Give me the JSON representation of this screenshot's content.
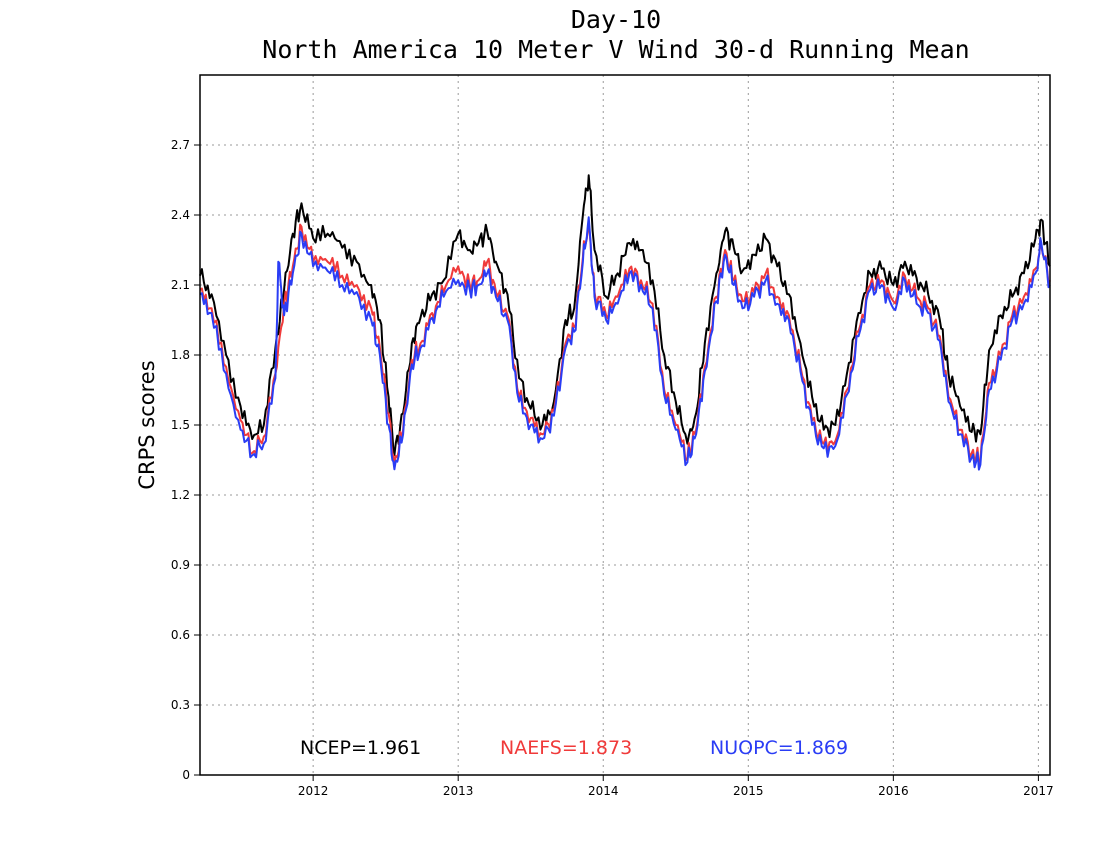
{
  "chart_data": {
    "type": "line",
    "title": "Day-10",
    "subtitle": "North America 10 Meter V Wind 30-d Running Mean",
    "ylabel": "CRPS scores",
    "xlabel": "",
    "xlim": [
      2011.22,
      2017.08
    ],
    "ylim": [
      0,
      3.0
    ],
    "x_ticks": [
      "2012",
      "2013",
      "2014",
      "2015",
      "2016",
      "2017"
    ],
    "y_ticks": [
      "0",
      "0.3",
      "0.6",
      "0.9",
      "1.2",
      "1.5",
      "1.8",
      "2.1",
      "2.4",
      "2.7"
    ],
    "grid": true,
    "legend_placement": "bottom",
    "colors": {
      "NCEP": "#000000",
      "NAEFS": "#f03a3a",
      "NUOPC": "#2a3df5"
    },
    "legend": [
      {
        "name": "NCEP",
        "text": "NCEP=1.961",
        "color": "#000000"
      },
      {
        "name": "NAEFS",
        "text": "NAEFS=1.873",
        "color": "#f03a3a"
      },
      {
        "name": "NUOPC",
        "text": "NUOPC=1.869",
        "color": "#2a3df5"
      }
    ],
    "series": [
      {
        "name": "NCEP",
        "points": [
          [
            2011.22,
            2.14
          ],
          [
            2011.3,
            2.06
          ],
          [
            2011.4,
            1.8
          ],
          [
            2011.5,
            1.58
          ],
          [
            2011.58,
            1.44
          ],
          [
            2011.66,
            1.5
          ],
          [
            2011.74,
            1.83
          ],
          [
            2011.8,
            2.08
          ],
          [
            2011.86,
            2.32
          ],
          [
            2011.92,
            2.45
          ],
          [
            2012.0,
            2.3
          ],
          [
            2012.1,
            2.32
          ],
          [
            2012.2,
            2.26
          ],
          [
            2012.3,
            2.2
          ],
          [
            2012.4,
            2.1
          ],
          [
            2012.46,
            1.95
          ],
          [
            2012.52,
            1.62
          ],
          [
            2012.56,
            1.37
          ],
          [
            2012.62,
            1.55
          ],
          [
            2012.68,
            1.85
          ],
          [
            2012.74,
            1.96
          ],
          [
            2012.82,
            2.06
          ],
          [
            2012.9,
            2.12
          ],
          [
            2013.0,
            2.32
          ],
          [
            2013.08,
            2.25
          ],
          [
            2013.14,
            2.28
          ],
          [
            2013.2,
            2.33
          ],
          [
            2013.26,
            2.2
          ],
          [
            2013.34,
            2.06
          ],
          [
            2013.42,
            1.7
          ],
          [
            2013.5,
            1.57
          ],
          [
            2013.58,
            1.5
          ],
          [
            2013.66,
            1.6
          ],
          [
            2013.74,
            1.95
          ],
          [
            2013.8,
            2.0
          ],
          [
            2013.86,
            2.4
          ],
          [
            2013.9,
            2.57
          ],
          [
            2013.94,
            2.25
          ],
          [
            2014.02,
            2.05
          ],
          [
            2014.1,
            2.15
          ],
          [
            2014.18,
            2.28
          ],
          [
            2014.26,
            2.25
          ],
          [
            2014.34,
            2.12
          ],
          [
            2014.42,
            1.8
          ],
          [
            2014.5,
            1.6
          ],
          [
            2014.58,
            1.42
          ],
          [
            2014.64,
            1.55
          ],
          [
            2014.7,
            1.85
          ],
          [
            2014.78,
            2.15
          ],
          [
            2014.84,
            2.33
          ],
          [
            2014.9,
            2.26
          ],
          [
            2014.96,
            2.16
          ],
          [
            2015.04,
            2.23
          ],
          [
            2015.12,
            2.3
          ],
          [
            2015.2,
            2.18
          ],
          [
            2015.28,
            2.06
          ],
          [
            2015.36,
            1.85
          ],
          [
            2015.44,
            1.62
          ],
          [
            2015.52,
            1.48
          ],
          [
            2015.6,
            1.5
          ],
          [
            2015.68,
            1.72
          ],
          [
            2015.76,
            1.98
          ],
          [
            2015.84,
            2.15
          ],
          [
            2015.92,
            2.17
          ],
          [
            2016.0,
            2.1
          ],
          [
            2016.08,
            2.2
          ],
          [
            2016.16,
            2.13
          ],
          [
            2016.24,
            2.06
          ],
          [
            2016.32,
            1.95
          ],
          [
            2016.38,
            1.72
          ],
          [
            2016.46,
            1.58
          ],
          [
            2016.54,
            1.47
          ],
          [
            2016.6,
            1.46
          ],
          [
            2016.66,
            1.82
          ],
          [
            2016.74,
            1.97
          ],
          [
            2016.82,
            2.05
          ],
          [
            2016.9,
            2.15
          ],
          [
            2016.98,
            2.3
          ],
          [
            2017.02,
            2.38
          ],
          [
            2017.08,
            2.18
          ]
        ]
      },
      {
        "name": "NAEFS",
        "points": [
          [
            2011.22,
            2.08
          ],
          [
            2011.3,
            2.0
          ],
          [
            2011.4,
            1.75
          ],
          [
            2011.5,
            1.52
          ],
          [
            2011.58,
            1.38
          ],
          [
            2011.66,
            1.45
          ],
          [
            2011.74,
            1.72
          ],
          [
            2011.8,
            2.02
          ],
          [
            2011.86,
            2.18
          ],
          [
            2011.92,
            2.35
          ],
          [
            2012.0,
            2.2
          ],
          [
            2012.1,
            2.2
          ],
          [
            2012.2,
            2.14
          ],
          [
            2012.3,
            2.1
          ],
          [
            2012.4,
            2.0
          ],
          [
            2012.46,
            1.83
          ],
          [
            2012.52,
            1.55
          ],
          [
            2012.56,
            1.33
          ],
          [
            2012.62,
            1.48
          ],
          [
            2012.68,
            1.78
          ],
          [
            2012.74,
            1.85
          ],
          [
            2012.82,
            1.98
          ],
          [
            2012.9,
            2.07
          ],
          [
            2013.0,
            2.18
          ],
          [
            2013.08,
            2.1
          ],
          [
            2013.14,
            2.12
          ],
          [
            2013.2,
            2.2
          ],
          [
            2013.26,
            2.07
          ],
          [
            2013.34,
            1.97
          ],
          [
            2013.42,
            1.62
          ],
          [
            2013.5,
            1.53
          ],
          [
            2013.58,
            1.46
          ],
          [
            2013.66,
            1.56
          ],
          [
            2013.74,
            1.85
          ],
          [
            2013.8,
            1.92
          ],
          [
            2013.86,
            2.22
          ],
          [
            2013.9,
            2.37
          ],
          [
            2013.94,
            2.07
          ],
          [
            2014.02,
            1.97
          ],
          [
            2014.1,
            2.05
          ],
          [
            2014.18,
            2.17
          ],
          [
            2014.26,
            2.12
          ],
          [
            2014.34,
            2.02
          ],
          [
            2014.42,
            1.65
          ],
          [
            2014.5,
            1.5
          ],
          [
            2014.58,
            1.36
          ],
          [
            2014.64,
            1.48
          ],
          [
            2014.7,
            1.75
          ],
          [
            2014.78,
            2.05
          ],
          [
            2014.84,
            2.25
          ],
          [
            2014.9,
            2.12
          ],
          [
            2014.96,
            2.03
          ],
          [
            2015.04,
            2.07
          ],
          [
            2015.12,
            2.15
          ],
          [
            2015.2,
            2.05
          ],
          [
            2015.28,
            1.97
          ],
          [
            2015.36,
            1.75
          ],
          [
            2015.44,
            1.52
          ],
          [
            2015.52,
            1.42
          ],
          [
            2015.6,
            1.43
          ],
          [
            2015.68,
            1.65
          ],
          [
            2015.76,
            1.9
          ],
          [
            2015.84,
            2.1
          ],
          [
            2015.92,
            2.12
          ],
          [
            2016.0,
            2.03
          ],
          [
            2016.08,
            2.14
          ],
          [
            2016.16,
            2.05
          ],
          [
            2016.24,
            2.0
          ],
          [
            2016.32,
            1.88
          ],
          [
            2016.38,
            1.62
          ],
          [
            2016.46,
            1.48
          ],
          [
            2016.54,
            1.38
          ],
          [
            2016.6,
            1.35
          ],
          [
            2016.66,
            1.68
          ],
          [
            2016.74,
            1.8
          ],
          [
            2016.82,
            1.97
          ],
          [
            2016.9,
            2.05
          ],
          [
            2016.98,
            2.17
          ],
          [
            2017.02,
            2.27
          ],
          [
            2017.08,
            2.12
          ]
        ]
      },
      {
        "name": "NUOPC",
        "points": [
          [
            2011.22,
            2.06
          ],
          [
            2011.3,
            1.98
          ],
          [
            2011.4,
            1.72
          ],
          [
            2011.5,
            1.48
          ],
          [
            2011.58,
            1.37
          ],
          [
            2011.66,
            1.42
          ],
          [
            2011.74,
            1.7
          ],
          [
            2011.76,
            2.2
          ],
          [
            2011.8,
            1.97
          ],
          [
            2011.86,
            2.15
          ],
          [
            2011.92,
            2.32
          ],
          [
            2012.0,
            2.18
          ],
          [
            2012.1,
            2.16
          ],
          [
            2012.2,
            2.1
          ],
          [
            2012.3,
            2.07
          ],
          [
            2012.4,
            1.95
          ],
          [
            2012.46,
            1.8
          ],
          [
            2012.52,
            1.5
          ],
          [
            2012.56,
            1.31
          ],
          [
            2012.62,
            1.46
          ],
          [
            2012.68,
            1.76
          ],
          [
            2012.74,
            1.83
          ],
          [
            2012.82,
            1.96
          ],
          [
            2012.9,
            2.05
          ],
          [
            2013.0,
            2.12
          ],
          [
            2013.08,
            2.08
          ],
          [
            2013.14,
            2.1
          ],
          [
            2013.2,
            2.15
          ],
          [
            2013.26,
            2.05
          ],
          [
            2013.34,
            1.95
          ],
          [
            2013.42,
            1.6
          ],
          [
            2013.5,
            1.5
          ],
          [
            2013.58,
            1.44
          ],
          [
            2013.66,
            1.54
          ],
          [
            2013.74,
            1.83
          ],
          [
            2013.8,
            1.9
          ],
          [
            2013.86,
            2.2
          ],
          [
            2013.9,
            2.39
          ],
          [
            2013.94,
            2.05
          ],
          [
            2014.02,
            1.95
          ],
          [
            2014.1,
            2.02
          ],
          [
            2014.18,
            2.15
          ],
          [
            2014.26,
            2.1
          ],
          [
            2014.34,
            2.0
          ],
          [
            2014.42,
            1.63
          ],
          [
            2014.5,
            1.48
          ],
          [
            2014.58,
            1.34
          ],
          [
            2014.64,
            1.46
          ],
          [
            2014.7,
            1.73
          ],
          [
            2014.78,
            2.03
          ],
          [
            2014.84,
            2.23
          ],
          [
            2014.9,
            2.1
          ],
          [
            2014.96,
            2.0
          ],
          [
            2015.04,
            2.05
          ],
          [
            2015.12,
            2.12
          ],
          [
            2015.2,
            2.02
          ],
          [
            2015.28,
            1.95
          ],
          [
            2015.36,
            1.73
          ],
          [
            2015.44,
            1.5
          ],
          [
            2015.52,
            1.4
          ],
          [
            2015.6,
            1.41
          ],
          [
            2015.68,
            1.63
          ],
          [
            2015.76,
            1.88
          ],
          [
            2015.84,
            2.08
          ],
          [
            2015.92,
            2.1
          ],
          [
            2016.0,
            2.0
          ],
          [
            2016.08,
            2.12
          ],
          [
            2016.16,
            2.02
          ],
          [
            2016.24,
            1.98
          ],
          [
            2016.32,
            1.86
          ],
          [
            2016.38,
            1.6
          ],
          [
            2016.46,
            1.46
          ],
          [
            2016.54,
            1.36
          ],
          [
            2016.6,
            1.33
          ],
          [
            2016.66,
            1.65
          ],
          [
            2016.74,
            1.78
          ],
          [
            2016.82,
            1.95
          ],
          [
            2016.9,
            2.02
          ],
          [
            2016.98,
            2.15
          ],
          [
            2017.02,
            2.28
          ],
          [
            2017.08,
            2.1
          ]
        ]
      }
    ]
  }
}
